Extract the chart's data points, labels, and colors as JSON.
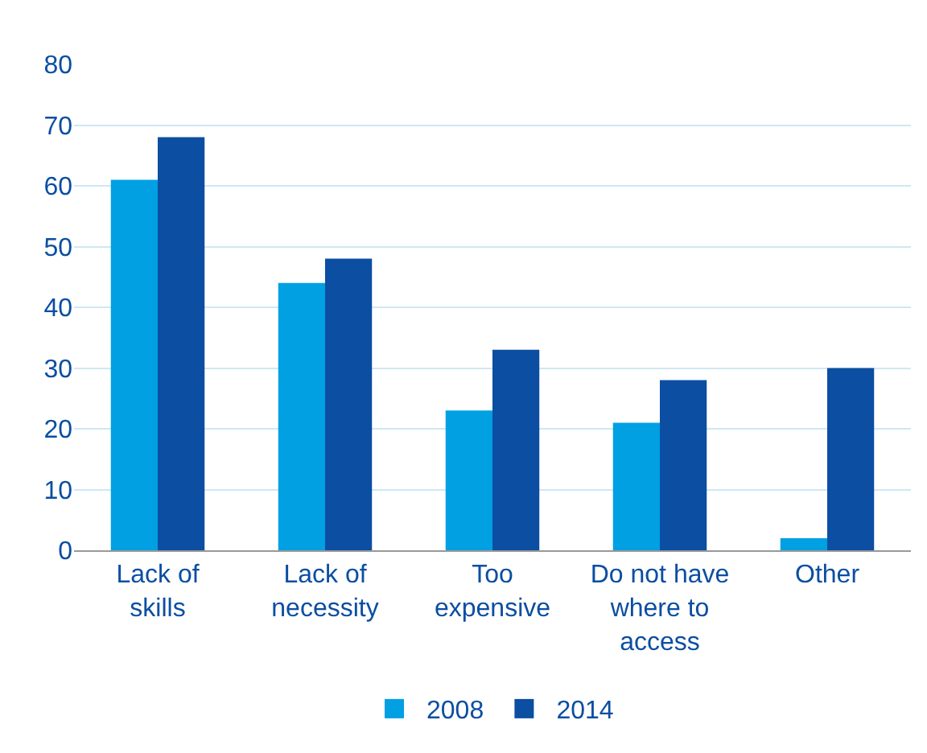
{
  "chart_data": {
    "type": "bar",
    "categories": [
      "Lack of skills",
      "Lack of necessity",
      "Too expensive",
      "Do not have where to access",
      "Other"
    ],
    "series": [
      {
        "name": "2008",
        "color": "#00a0e3",
        "values": [
          61,
          44,
          23,
          21,
          2
        ]
      },
      {
        "name": "2014",
        "color": "#0b4ea2",
        "values": [
          68,
          48,
          33,
          28,
          30
        ]
      }
    ],
    "ylim": [
      0,
      80
    ],
    "yticks": [
      0,
      10,
      20,
      30,
      40,
      50,
      60,
      70,
      80
    ],
    "grid": "y",
    "legend": "bottom"
  }
}
